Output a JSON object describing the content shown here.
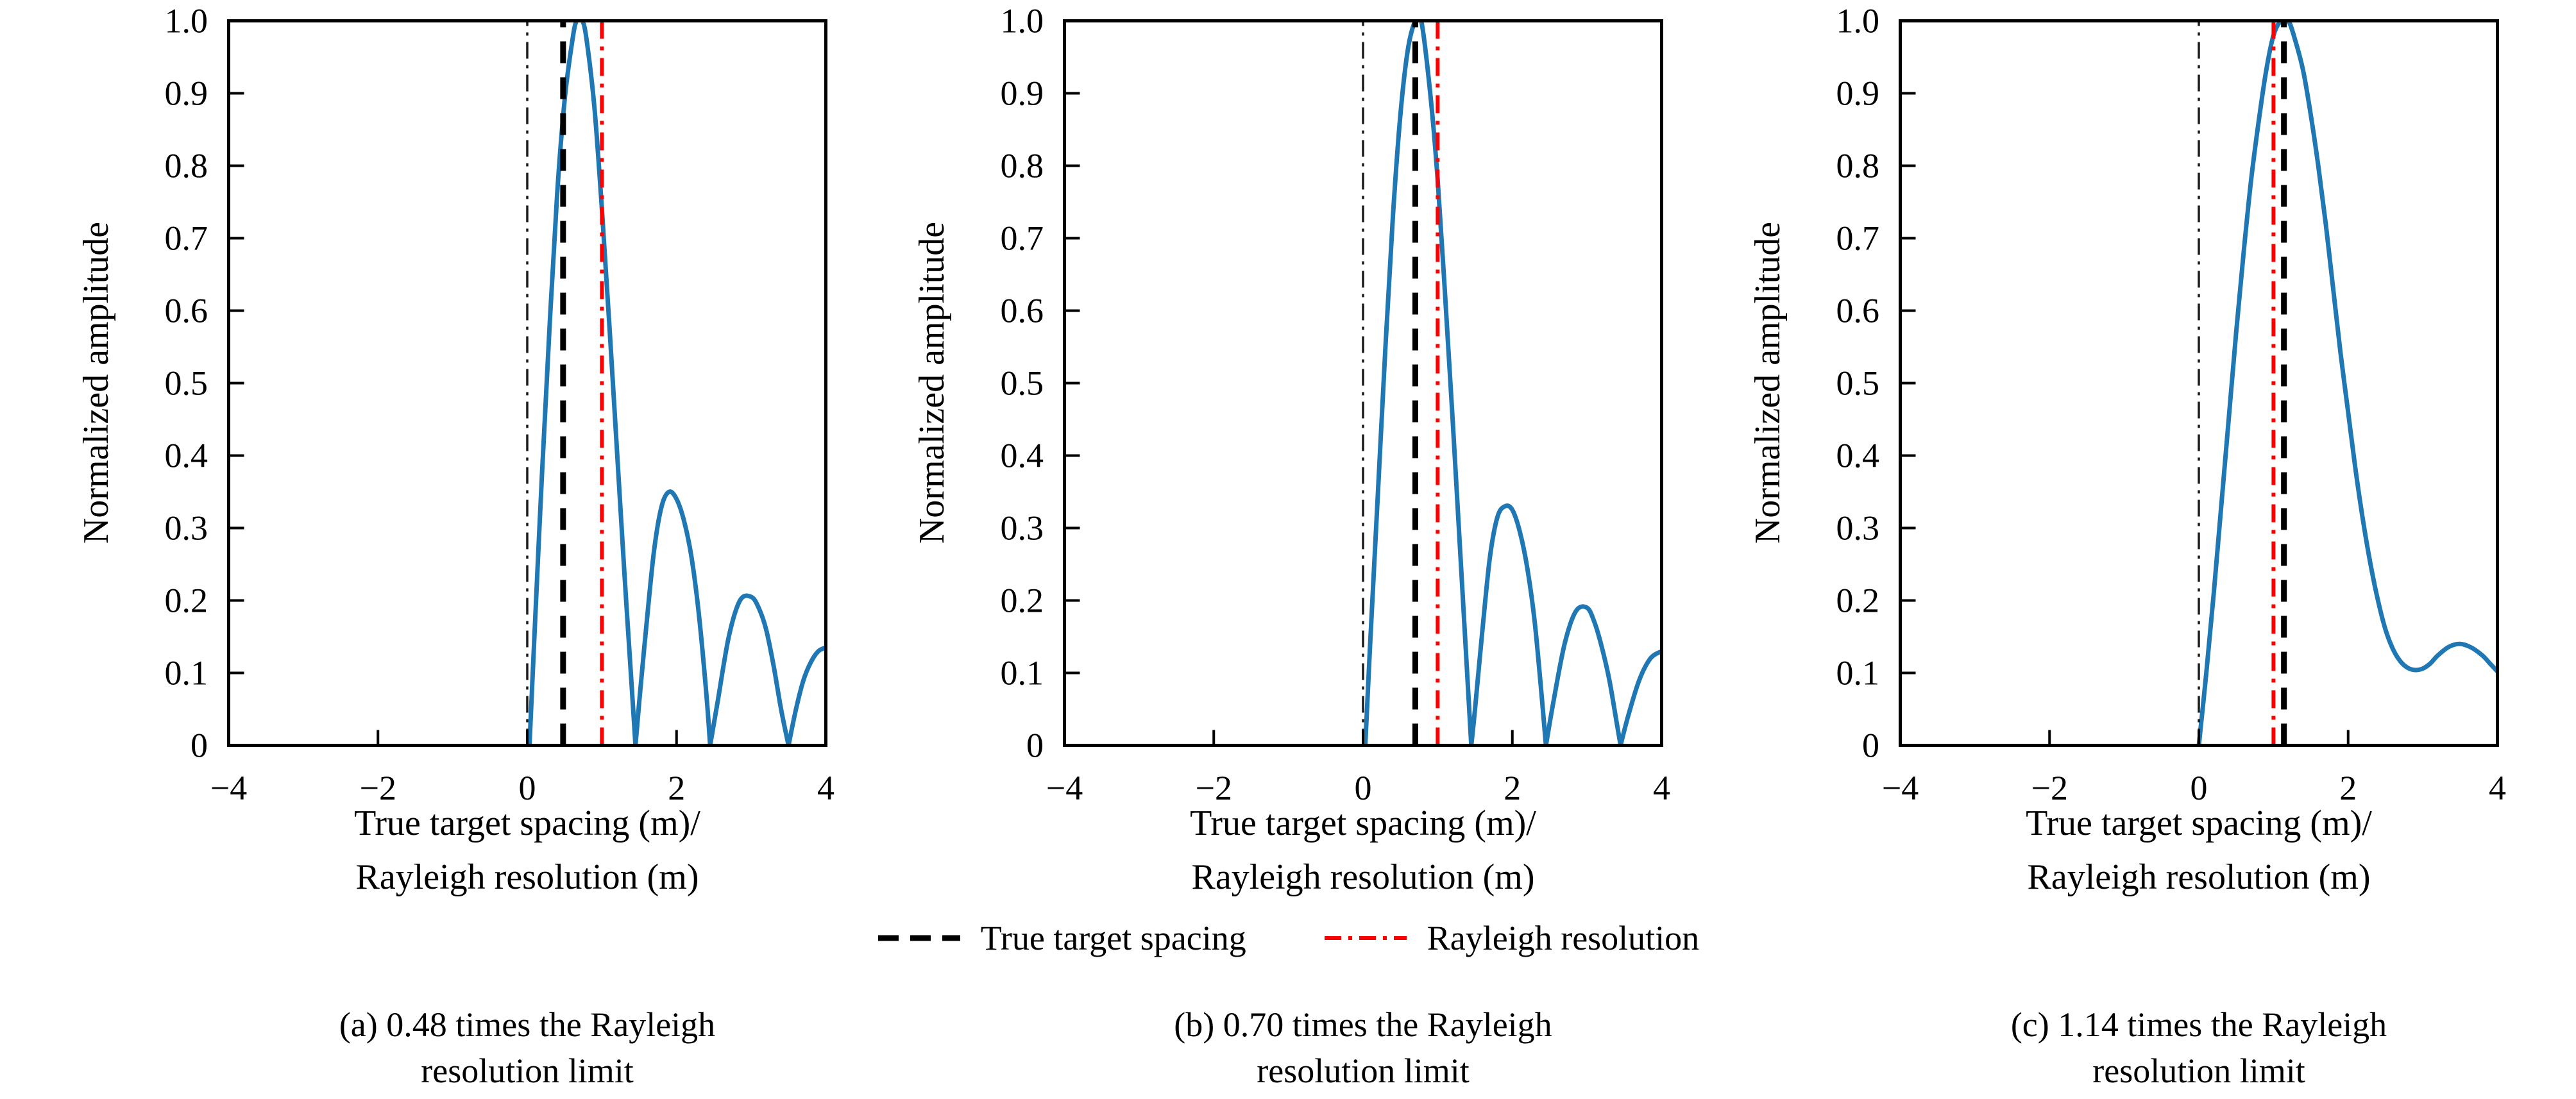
{
  "legend": {
    "items": [
      {
        "label": "True target spacing",
        "color": "#000000",
        "pattern": "dashed"
      },
      {
        "label": "Rayleigh resolution",
        "color": "#ff0000",
        "pattern": "dashdot"
      }
    ]
  },
  "chart_data": {
    "type": "line",
    "ylabel": "Normalized amplitude",
    "xlabel_line1": "True target spacing (m)/",
    "xlabel_line2": "Rayleigh resolution (m)",
    "xlim": [
      -4,
      4
    ],
    "ylim": [
      0,
      1
    ],
    "grid": false,
    "legend_position": "below-figure",
    "x_ticks": {
      "values": [
        -4,
        -2,
        0,
        2,
        4
      ],
      "labels": [
        "−4",
        "−2",
        "0",
        "2",
        "4"
      ]
    },
    "y_ticks": {
      "values": [
        0,
        0.1,
        0.2,
        0.3,
        0.4,
        0.5,
        0.6,
        0.7,
        0.8,
        0.9,
        1.0
      ],
      "labels": [
        "0",
        "0.1",
        "0.2",
        "0.3",
        "0.4",
        "0.5",
        "0.6",
        "0.7",
        "0.8",
        "0.9",
        "1.0"
      ]
    },
    "colors": {
      "curve": "#1f77b4",
      "true_spacing": "#000000",
      "rayleigh": "#ff0000",
      "zero_line": "#1a1a1a",
      "frame": "#000000"
    },
    "charts": [
      {
        "id": "a",
        "caption_line1": "(a) 0.48 times the Rayleigh",
        "caption_line2": "resolution limit",
        "true_target_spacing": 0.48,
        "rayleigh_resolution": 1.0,
        "zero_reference": 0,
        "curve_points": [
          [
            0.03,
            0
          ],
          [
            0.1,
            0.16
          ],
          [
            0.2,
            0.38
          ],
          [
            0.3,
            0.58
          ],
          [
            0.4,
            0.76
          ],
          [
            0.5,
            0.89
          ],
          [
            0.6,
            0.97
          ],
          [
            0.66,
            1.0
          ],
          [
            0.74,
            1.0
          ],
          [
            0.8,
            0.97
          ],
          [
            0.9,
            0.88
          ],
          [
            1.0,
            0.74
          ],
          [
            1.1,
            0.58
          ],
          [
            1.2,
            0.41
          ],
          [
            1.3,
            0.24
          ],
          [
            1.4,
            0.08
          ],
          [
            1.45,
            0
          ],
          [
            1.5,
            0.06
          ],
          [
            1.6,
            0.17
          ],
          [
            1.7,
            0.27
          ],
          [
            1.8,
            0.33
          ],
          [
            1.9,
            0.35
          ],
          [
            2.0,
            0.34
          ],
          [
            2.1,
            0.31
          ],
          [
            2.2,
            0.26
          ],
          [
            2.3,
            0.18
          ],
          [
            2.4,
            0.07
          ],
          [
            2.45,
            0
          ],
          [
            2.55,
            0.06
          ],
          [
            2.7,
            0.15
          ],
          [
            2.85,
            0.2
          ],
          [
            3.0,
            0.205
          ],
          [
            3.1,
            0.19
          ],
          [
            3.2,
            0.16
          ],
          [
            3.3,
            0.11
          ],
          [
            3.4,
            0.05
          ],
          [
            3.5,
            0
          ],
          [
            3.6,
            0.05
          ],
          [
            3.7,
            0.09
          ],
          [
            3.8,
            0.115
          ],
          [
            3.9,
            0.13
          ],
          [
            4.0,
            0.135
          ]
        ]
      },
      {
        "id": "b",
        "caption_line1": "(b) 0.70 times the Rayleigh",
        "caption_line2": "resolution limit",
        "true_target_spacing": 0.7,
        "rayleigh_resolution": 1.0,
        "zero_reference": 0,
        "curve_points": [
          [
            0.03,
            0
          ],
          [
            0.1,
            0.15
          ],
          [
            0.2,
            0.35
          ],
          [
            0.3,
            0.55
          ],
          [
            0.4,
            0.73
          ],
          [
            0.5,
            0.87
          ],
          [
            0.6,
            0.96
          ],
          [
            0.7,
            1.0
          ],
          [
            0.78,
            1.0
          ],
          [
            0.9,
            0.9
          ],
          [
            1.0,
            0.78
          ],
          [
            1.1,
            0.62
          ],
          [
            1.2,
            0.45
          ],
          [
            1.3,
            0.27
          ],
          [
            1.4,
            0.09
          ],
          [
            1.45,
            0
          ],
          [
            1.5,
            0.05
          ],
          [
            1.6,
            0.16
          ],
          [
            1.7,
            0.26
          ],
          [
            1.8,
            0.315
          ],
          [
            1.9,
            0.33
          ],
          [
            2.0,
            0.325
          ],
          [
            2.1,
            0.295
          ],
          [
            2.2,
            0.245
          ],
          [
            2.3,
            0.17
          ],
          [
            2.4,
            0.06
          ],
          [
            2.45,
            0
          ],
          [
            2.55,
            0.06
          ],
          [
            2.7,
            0.14
          ],
          [
            2.85,
            0.185
          ],
          [
            3.0,
            0.19
          ],
          [
            3.1,
            0.17
          ],
          [
            3.2,
            0.135
          ],
          [
            3.3,
            0.09
          ],
          [
            3.4,
            0.03
          ],
          [
            3.45,
            0
          ],
          [
            3.55,
            0.04
          ],
          [
            3.7,
            0.09
          ],
          [
            3.85,
            0.12
          ],
          [
            4.0,
            0.13
          ]
        ]
      },
      {
        "id": "c",
        "caption_line1": "(c) 1.14 times the Rayleigh",
        "caption_line2": "resolution limit",
        "true_target_spacing": 1.14,
        "rayleigh_resolution": 1.0,
        "zero_reference": 0,
        "curve_points": [
          [
            0.0,
            0
          ],
          [
            0.1,
            0.1
          ],
          [
            0.2,
            0.21
          ],
          [
            0.3,
            0.33
          ],
          [
            0.4,
            0.45
          ],
          [
            0.5,
            0.57
          ],
          [
            0.6,
            0.68
          ],
          [
            0.7,
            0.78
          ],
          [
            0.8,
            0.86
          ],
          [
            0.9,
            0.93
          ],
          [
            1.0,
            0.98
          ],
          [
            1.1,
            1.0
          ],
          [
            1.2,
            1.0
          ],
          [
            1.3,
            0.97
          ],
          [
            1.4,
            0.93
          ],
          [
            1.5,
            0.87
          ],
          [
            1.6,
            0.8
          ],
          [
            1.7,
            0.72
          ],
          [
            1.8,
            0.63
          ],
          [
            1.9,
            0.54
          ],
          [
            2.0,
            0.46
          ],
          [
            2.1,
            0.38
          ],
          [
            2.2,
            0.31
          ],
          [
            2.3,
            0.25
          ],
          [
            2.4,
            0.2
          ],
          [
            2.5,
            0.16
          ],
          [
            2.6,
            0.133
          ],
          [
            2.7,
            0.116
          ],
          [
            2.8,
            0.107
          ],
          [
            2.9,
            0.104
          ],
          [
            3.0,
            0.106
          ],
          [
            3.1,
            0.113
          ],
          [
            3.2,
            0.124
          ],
          [
            3.35,
            0.136
          ],
          [
            3.5,
            0.14
          ],
          [
            3.65,
            0.135
          ],
          [
            3.8,
            0.124
          ],
          [
            3.9,
            0.113
          ],
          [
            4.0,
            0.102
          ]
        ]
      }
    ]
  }
}
